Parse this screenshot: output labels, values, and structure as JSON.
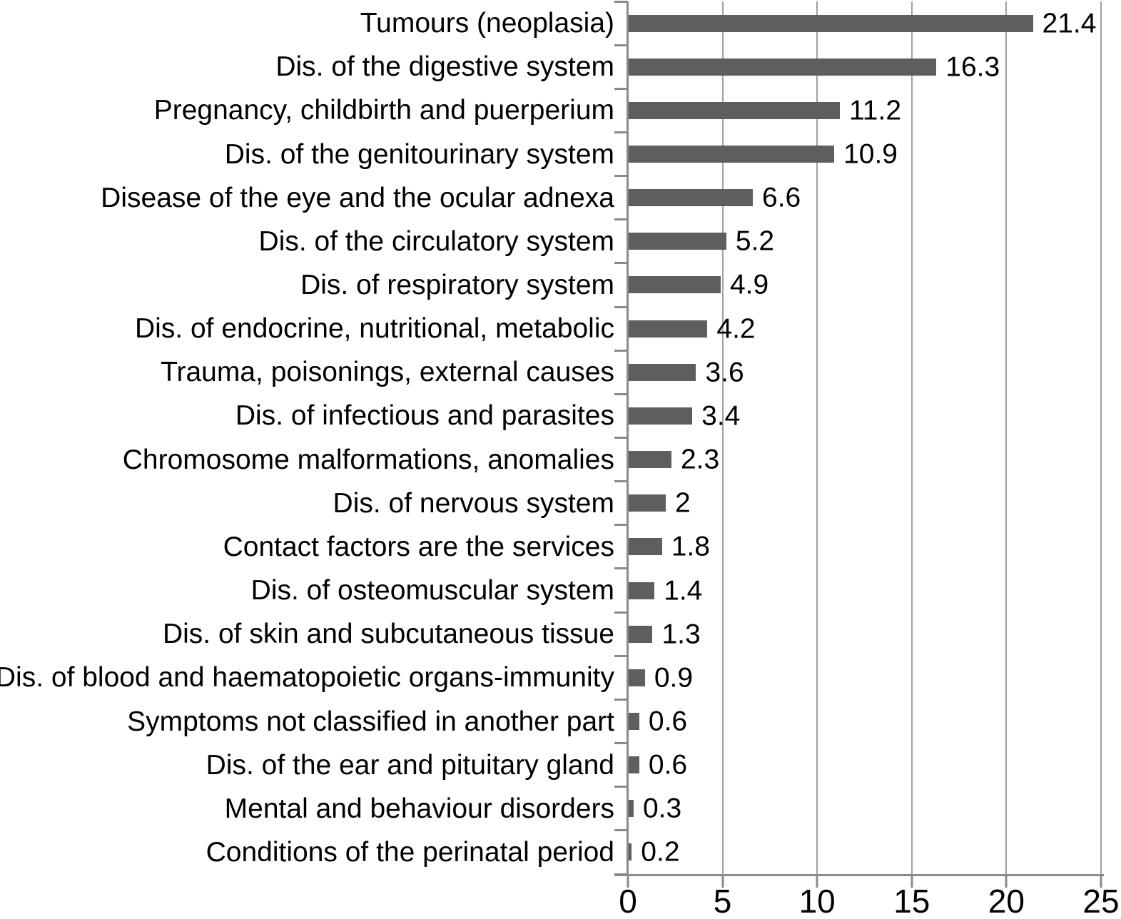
{
  "chart_data": {
    "type": "bar",
    "orientation": "horizontal",
    "title": "",
    "xlabel": "",
    "ylabel": "",
    "categories": [
      "Tumours (neoplasia)",
      "Dis. of the digestive system",
      "Pregnancy, childbirth and puerperium",
      "Dis. of the genitourinary system",
      "Disease of the eye and the ocular adnexa",
      "Dis. of the circulatory system",
      "Dis. of respiratory system",
      "Dis. of endocrine, nutritional, metabolic",
      "Trauma, poisonings, external causes",
      "Dis. of infectious and parasites",
      "Chromosome malformations, anomalies",
      "Dis. of nervous system",
      "Contact factors are the services",
      "Dis. of osteomuscular system",
      "Dis. of skin and subcutaneous tissue",
      "Dis. of blood and haematopoietic organs-immunity",
      "Symptoms not classified in another part",
      "Dis. of the ear and pituitary gland",
      "Mental and behaviour disorders",
      "Conditions of the perinatal period"
    ],
    "values": [
      21.4,
      16.3,
      11.2,
      10.9,
      6.6,
      5.2,
      4.9,
      4.2,
      3.6,
      3.4,
      2.3,
      2,
      1.8,
      1.4,
      1.3,
      0.9,
      0.6,
      0.6,
      0.3,
      0.2
    ],
    "data_labels": [
      "21.4",
      "16.3",
      "11.2",
      "10.9",
      "6.6",
      "5.2",
      "4.9",
      "4.2",
      "3.6",
      "3.4",
      "2.3",
      "2",
      "1.8",
      "1.4",
      "1.3",
      "0.9",
      "0.6",
      "0.6",
      "0.3",
      "0.2"
    ],
    "xlim": [
      0,
      25
    ],
    "x_ticks": [
      "0",
      "5",
      "10",
      "15",
      "20",
      "25"
    ],
    "grid": "vertical-gridlines-on",
    "legend": "none",
    "bar_color": "#5e5e5e",
    "gridline_color": "#a0a0a0",
    "axis_color": "#8a8a8a",
    "text_color": "#000000"
  }
}
